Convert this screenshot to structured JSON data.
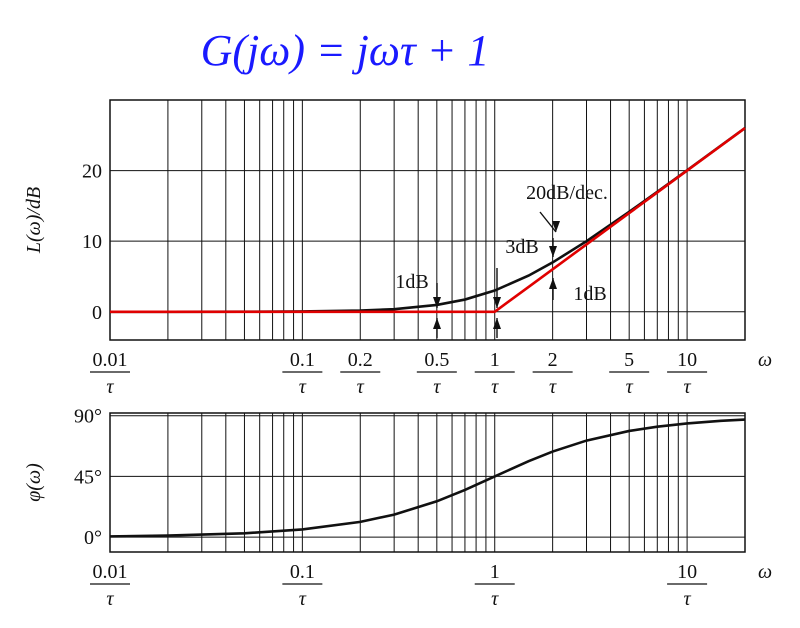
{
  "chart_data": [
    {
      "type": "line",
      "title": "G(jω) = jωτ + 1",
      "ylabel": "L(ω)/dB",
      "xlabel": "ω",
      "log_x": true,
      "xlim": [
        0.01,
        20
      ],
      "ylim": [
        -4,
        30
      ],
      "xticks": [
        0.01,
        0.1,
        0.2,
        0.5,
        1,
        2,
        5,
        10
      ],
      "tick_denominator": "τ",
      "yticks": [
        0,
        10,
        20
      ],
      "xgrid": [
        0.01,
        0.02,
        0.03,
        0.04,
        0.05,
        0.06,
        0.07,
        0.08,
        0.09,
        0.1,
        0.2,
        0.3,
        0.4,
        0.5,
        0.6,
        0.7,
        0.8,
        0.9,
        1,
        2,
        3,
        4,
        5,
        6,
        7,
        8,
        9,
        10,
        20
      ],
      "x": [
        0.01,
        0.02,
        0.05,
        0.1,
        0.2,
        0.3,
        0.5,
        0.7,
        1,
        1.5,
        2,
        3,
        5,
        7,
        10,
        15,
        20
      ],
      "series": [
        {
          "color": "#111111",
          "values": [
            0,
            0,
            0.01,
            0.04,
            0.17,
            0.37,
            0.97,
            1.73,
            3.01,
            5.12,
            6.99,
            10,
            14.15,
            17.0,
            20.04,
            23.54,
            26.03
          ]
        },
        {
          "color": "#e00000",
          "values": [
            0,
            0,
            0,
            0,
            0,
            0,
            0,
            0,
            0,
            3.52,
            6.02,
            9.54,
            13.98,
            16.9,
            20,
            23.52,
            26.02
          ]
        }
      ],
      "annotations": [
        "1dB",
        "3dB",
        "1dB",
        "20dB/dec."
      ]
    },
    {
      "type": "line",
      "ylabel": "φ(ω)",
      "xlabel": "ω",
      "log_x": true,
      "xlim": [
        0.01,
        20
      ],
      "ylim": [
        -11,
        92
      ],
      "xticks": [
        0.01,
        0.1,
        1,
        10
      ],
      "tick_denominator": "τ",
      "yticks": [
        {
          "value": 0,
          "label": "0°"
        },
        {
          "value": 45,
          "label": "45°"
        },
        {
          "value": 90,
          "label": "90°"
        }
      ],
      "xgrid": [
        0.01,
        0.02,
        0.03,
        0.04,
        0.05,
        0.06,
        0.07,
        0.08,
        0.09,
        0.1,
        0.2,
        0.3,
        0.4,
        0.5,
        0.6,
        0.7,
        0.8,
        0.9,
        1,
        2,
        3,
        4,
        5,
        6,
        7,
        8,
        9,
        10,
        20
      ],
      "x": [
        0.01,
        0.02,
        0.05,
        0.1,
        0.2,
        0.3,
        0.5,
        0.7,
        1,
        1.5,
        2,
        3,
        5,
        7,
        10,
        15,
        20
      ],
      "series": [
        {
          "color": "#111111",
          "values": [
            0.57,
            1.15,
            2.86,
            5.71,
            11.31,
            16.7,
            26.57,
            34.99,
            45,
            56.31,
            63.43,
            71.57,
            78.69,
            81.87,
            84.29,
            86.19,
            87.14
          ]
        }
      ]
    }
  ]
}
